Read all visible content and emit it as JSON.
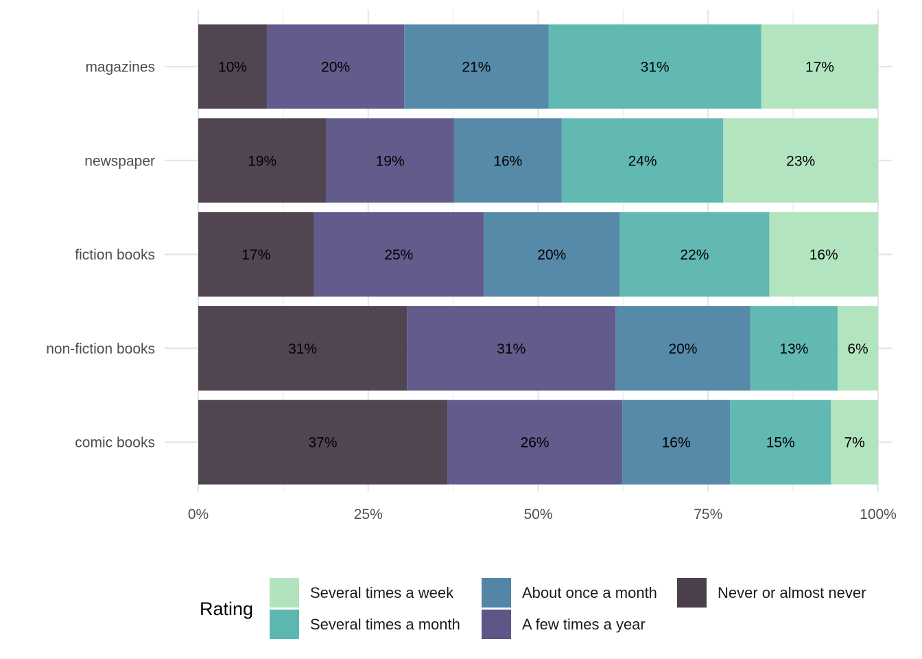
{
  "chart_data": {
    "type": "bar",
    "orientation": "horizontal",
    "stacked": "percent",
    "categories": [
      "magazines",
      "newspaper",
      "fiction books",
      "non-fiction books",
      "comic books"
    ],
    "series": [
      {
        "name": "Never or almost never",
        "color": "#4a3f4b",
        "values": [
          10,
          19,
          17,
          31,
          37
        ]
      },
      {
        "name": "A few times a year",
        "color": "#5c5787",
        "values": [
          20,
          19,
          25,
          31,
          26
        ]
      },
      {
        "name": "About once a month",
        "color": "#5285a6",
        "values": [
          21,
          16,
          20,
          20,
          16
        ]
      },
      {
        "name": "Several times a month",
        "color": "#5db7b0",
        "values": [
          31,
          24,
          22,
          13,
          15
        ]
      },
      {
        "name": "Several times a week",
        "color": "#b1e3be",
        "values": [
          17,
          23,
          16,
          6,
          7
        ]
      }
    ],
    "data_labels": [
      [
        "10%",
        "20%",
        "21%",
        "31%",
        "17%"
      ],
      [
        "19%",
        "19%",
        "16%",
        "24%",
        "23%"
      ],
      [
        "17%",
        "25%",
        "20%",
        "22%",
        "16%"
      ],
      [
        "31%",
        "31%",
        "20%",
        "13%",
        "6%"
      ],
      [
        "37%",
        "26%",
        "16%",
        "15%",
        "7%"
      ]
    ],
    "xlim": [
      0,
      100
    ],
    "xticks": [
      "0%",
      "25%",
      "50%",
      "75%",
      "100%"
    ],
    "xlabel": "",
    "ylabel": "",
    "grid": true,
    "legend": {
      "title": "Rating",
      "position": "bottom",
      "order": [
        "Several times a week",
        "Several times a month",
        "About once a month",
        "A few times a year",
        "Never or almost never"
      ]
    }
  }
}
